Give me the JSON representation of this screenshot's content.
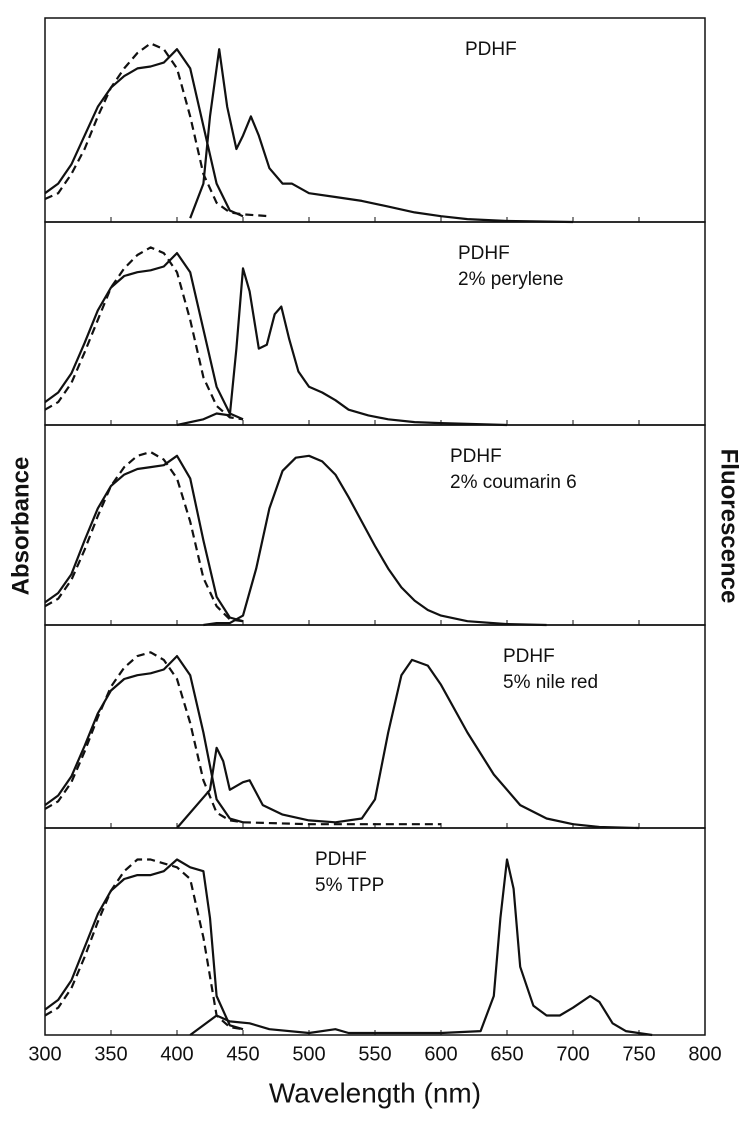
{
  "chart_data": [
    {
      "type": "line",
      "annotation": [
        "PDHF"
      ],
      "xlim": [
        300,
        800
      ],
      "ylim": [
        0,
        1
      ],
      "xticks": [
        300,
        350,
        400,
        450,
        500,
        550,
        600,
        650,
        700,
        750,
        800
      ],
      "series": [
        {
          "color": "#111111",
          "dash": false,
          "x": [
            300,
            310,
            320,
            330,
            340,
            350,
            360,
            370,
            380,
            390,
            400,
            410,
            420,
            430,
            440,
            450
          ],
          "values": [
            0.15,
            0.2,
            0.3,
            0.45,
            0.6,
            0.7,
            0.76,
            0.8,
            0.81,
            0.83,
            0.9,
            0.8,
            0.5,
            0.2,
            0.06,
            0.03
          ]
        },
        {
          "color": "#111111",
          "dash": true,
          "x": [
            300,
            310,
            320,
            330,
            340,
            350,
            360,
            370,
            380,
            390,
            400,
            410,
            420,
            430,
            440,
            450,
            470
          ],
          "values": [
            0.12,
            0.15,
            0.25,
            0.38,
            0.55,
            0.7,
            0.8,
            0.88,
            0.93,
            0.9,
            0.8,
            0.55,
            0.25,
            0.1,
            0.05,
            0.04,
            0.03
          ]
        },
        {
          "color": "#111111",
          "dash": false,
          "x": [
            410,
            420,
            425,
            432,
            438,
            445,
            450,
            456,
            462,
            470,
            480,
            487,
            500,
            520,
            540,
            560,
            580,
            600,
            620,
            650,
            700
          ],
          "values": [
            0.02,
            0.2,
            0.55,
            0.9,
            0.6,
            0.38,
            0.45,
            0.55,
            0.45,
            0.28,
            0.2,
            0.2,
            0.15,
            0.13,
            0.11,
            0.08,
            0.05,
            0.03,
            0.015,
            0.005,
            0
          ]
        }
      ]
    },
    {
      "type": "line",
      "annotation": [
        "PDHF",
        "2% perylene"
      ],
      "xlim": [
        300,
        800
      ],
      "ylim": [
        0,
        1
      ],
      "xticks": [
        300,
        350,
        400,
        450,
        500,
        550,
        600,
        650,
        700,
        750,
        800
      ],
      "series": [
        {
          "color": "#111111",
          "dash": false,
          "x": [
            300,
            310,
            320,
            330,
            340,
            350,
            360,
            370,
            380,
            390,
            400,
            410,
            420,
            430,
            440,
            450
          ],
          "values": [
            0.12,
            0.17,
            0.27,
            0.43,
            0.6,
            0.72,
            0.78,
            0.8,
            0.81,
            0.83,
            0.9,
            0.8,
            0.5,
            0.2,
            0.06,
            0.03
          ]
        },
        {
          "color": "#111111",
          "dash": true,
          "x": [
            300,
            310,
            320,
            330,
            340,
            350,
            360,
            370,
            380,
            390,
            400,
            410,
            420,
            430,
            440,
            450
          ],
          "values": [
            0.08,
            0.12,
            0.22,
            0.38,
            0.55,
            0.72,
            0.82,
            0.89,
            0.93,
            0.9,
            0.8,
            0.55,
            0.25,
            0.1,
            0.04,
            0.03
          ]
        },
        {
          "color": "#111111",
          "dash": false,
          "x": [
            400,
            420,
            430,
            440,
            445,
            450,
            455,
            462,
            468,
            474,
            479,
            485,
            492,
            500,
            510,
            520,
            530,
            545,
            560,
            580,
            600,
            650
          ],
          "values": [
            0,
            0.03,
            0.06,
            0.05,
            0.4,
            0.82,
            0.7,
            0.4,
            0.42,
            0.58,
            0.62,
            0.45,
            0.28,
            0.2,
            0.17,
            0.13,
            0.08,
            0.05,
            0.03,
            0.015,
            0.01,
            0
          ]
        }
      ]
    },
    {
      "type": "line",
      "annotation": [
        "PDHF",
        "2% coumarin 6"
      ],
      "xlim": [
        300,
        800
      ],
      "ylim": [
        0,
        1
      ],
      "xticks": [
        300,
        350,
        400,
        450,
        500,
        550,
        600,
        650,
        700,
        750,
        800
      ],
      "ylabel": "Absorbance",
      "y2label": "Fluorescence",
      "series": [
        {
          "color": "#111111",
          "dash": false,
          "x": [
            300,
            310,
            320,
            330,
            340,
            350,
            360,
            370,
            380,
            390,
            400,
            410,
            420,
            430,
            440,
            450
          ],
          "values": [
            0.12,
            0.17,
            0.27,
            0.45,
            0.62,
            0.74,
            0.8,
            0.83,
            0.84,
            0.85,
            0.9,
            0.78,
            0.45,
            0.15,
            0.04,
            0.02
          ]
        },
        {
          "color": "#111111",
          "dash": true,
          "x": [
            300,
            310,
            320,
            330,
            340,
            350,
            360,
            370,
            380,
            390,
            400,
            410,
            420,
            430,
            440,
            450
          ],
          "values": [
            0.1,
            0.14,
            0.24,
            0.4,
            0.58,
            0.74,
            0.84,
            0.9,
            0.92,
            0.88,
            0.78,
            0.55,
            0.25,
            0.1,
            0.03,
            0.02
          ]
        },
        {
          "color": "#111111",
          "dash": false,
          "x": [
            420,
            430,
            440,
            450,
            460,
            470,
            480,
            490,
            500,
            510,
            520,
            530,
            540,
            550,
            560,
            570,
            580,
            590,
            600,
            620,
            650,
            680
          ],
          "values": [
            0,
            0.01,
            0.01,
            0.05,
            0.3,
            0.62,
            0.82,
            0.89,
            0.9,
            0.87,
            0.8,
            0.68,
            0.55,
            0.42,
            0.3,
            0.2,
            0.13,
            0.08,
            0.05,
            0.02,
            0.005,
            0
          ]
        }
      ]
    },
    {
      "type": "line",
      "annotation": [
        "PDHF",
        "5% nile red"
      ],
      "xlim": [
        300,
        800
      ],
      "ylim": [
        0,
        1
      ],
      "xticks": [
        300,
        350,
        400,
        450,
        500,
        550,
        600,
        650,
        700,
        750,
        800
      ],
      "series": [
        {
          "color": "#111111",
          "dash": false,
          "x": [
            300,
            310,
            320,
            330,
            340,
            350,
            360,
            370,
            380,
            390,
            400,
            410,
            420,
            430,
            440,
            450
          ],
          "values": [
            0.12,
            0.17,
            0.27,
            0.43,
            0.6,
            0.72,
            0.78,
            0.8,
            0.81,
            0.83,
            0.9,
            0.8,
            0.5,
            0.15,
            0.05,
            0.03
          ]
        },
        {
          "color": "#111111",
          "dash": true,
          "x": [
            300,
            310,
            320,
            330,
            340,
            350,
            360,
            370,
            380,
            390,
            400,
            410,
            420,
            430,
            440,
            450,
            500,
            550,
            600
          ],
          "values": [
            0.1,
            0.14,
            0.24,
            0.4,
            0.58,
            0.74,
            0.84,
            0.9,
            0.92,
            0.88,
            0.78,
            0.55,
            0.25,
            0.08,
            0.04,
            0.03,
            0.02,
            0.02,
            0.02
          ]
        },
        {
          "color": "#111111",
          "dash": false,
          "x": [
            400,
            425,
            430,
            435,
            440,
            450,
            455,
            465,
            480,
            500,
            520,
            540,
            550,
            560,
            570,
            578,
            590,
            600,
            620,
            640,
            660,
            680,
            700,
            720,
            750
          ],
          "values": [
            0,
            0.2,
            0.42,
            0.35,
            0.2,
            0.24,
            0.25,
            0.12,
            0.07,
            0.04,
            0.03,
            0.05,
            0.15,
            0.5,
            0.8,
            0.88,
            0.85,
            0.75,
            0.5,
            0.28,
            0.12,
            0.05,
            0.02,
            0.005,
            0
          ]
        }
      ]
    },
    {
      "type": "line",
      "annotation": [
        "PDHF",
        "5% TPP"
      ],
      "xlim": [
        300,
        800
      ],
      "ylim": [
        0,
        1
      ],
      "xlabel": "Wavelength (nm)",
      "xticks": [
        300,
        350,
        400,
        450,
        500,
        550,
        600,
        650,
        700,
        750,
        800
      ],
      "series": [
        {
          "color": "#111111",
          "dash": false,
          "x": [
            300,
            310,
            320,
            330,
            340,
            350,
            360,
            370,
            380,
            390,
            400,
            410,
            420,
            425,
            430,
            440,
            450
          ],
          "values": [
            0.13,
            0.18,
            0.28,
            0.45,
            0.62,
            0.74,
            0.8,
            0.82,
            0.82,
            0.84,
            0.9,
            0.86,
            0.84,
            0.6,
            0.2,
            0.05,
            0.03
          ]
        },
        {
          "color": "#111111",
          "dash": true,
          "x": [
            300,
            310,
            320,
            330,
            340,
            350,
            360,
            370,
            380,
            390,
            400,
            410,
            420,
            430,
            440,
            450
          ],
          "values": [
            0.1,
            0.14,
            0.24,
            0.4,
            0.58,
            0.74,
            0.84,
            0.9,
            0.9,
            0.88,
            0.86,
            0.8,
            0.5,
            0.1,
            0.04,
            0.03
          ]
        },
        {
          "color": "#111111",
          "dash": false,
          "x": [
            410,
            430,
            440,
            455,
            470,
            500,
            520,
            530,
            600,
            630,
            640,
            645,
            650,
            655,
            660,
            670,
            680,
            690,
            700,
            713,
            720,
            730,
            740,
            760
          ],
          "values": [
            0,
            0.1,
            0.07,
            0.06,
            0.03,
            0.01,
            0.03,
            0.01,
            0.01,
            0.02,
            0.2,
            0.6,
            0.9,
            0.75,
            0.35,
            0.15,
            0.1,
            0.1,
            0.14,
            0.2,
            0.17,
            0.06,
            0.02,
            0
          ]
        }
      ]
    }
  ]
}
